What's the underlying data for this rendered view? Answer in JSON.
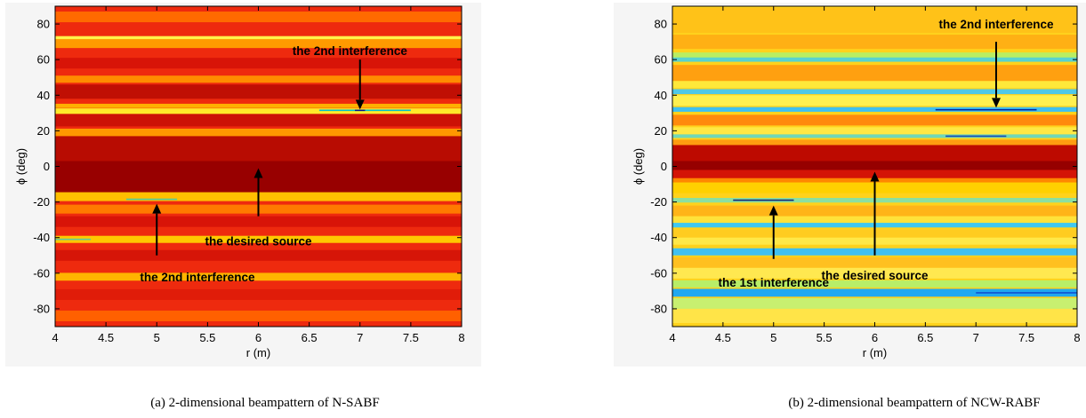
{
  "chart_data": [
    {
      "type": "heatmap",
      "title": "",
      "caption": "(a) 2-dimensional beampattern of N-SABF",
      "xlabel": "r (m)",
      "ylabel": "ϕ (deg)",
      "xlim": [
        4,
        8
      ],
      "ylim": [
        -90,
        90
      ],
      "xticks": [
        "4",
        "4.5",
        "5",
        "5.5",
        "6",
        "6.5",
        "7",
        "7.5",
        "8"
      ],
      "yticks": [
        "80",
        "60",
        "40",
        "20",
        "0",
        "-20",
        "-40",
        "-60",
        "-80"
      ],
      "colormap": "jet",
      "background_color": "#ee2a0e",
      "bands": [
        {
          "phi": 84,
          "half_width": 3,
          "color": "#ff6a00"
        },
        {
          "phi": 72,
          "half_width": 1.2,
          "color": "#fff34a"
        },
        {
          "phi": 69,
          "half_width": 2.5,
          "color": "#ff9a00"
        },
        {
          "phi": 58,
          "half_width": 3,
          "color": "#d81408"
        },
        {
          "phi": 49,
          "half_width": 2,
          "color": "#ff8c00"
        },
        {
          "phi": 42,
          "half_width": 4,
          "color": "#c00f04"
        },
        {
          "phi": 34,
          "half_width": 1.2,
          "color": "#ffb000"
        },
        {
          "phi": 31,
          "half_width": 1.6,
          "color": "#ffea2a"
        },
        {
          "phi": 26,
          "half_width": 3.5,
          "color": "#cc1206"
        },
        {
          "phi": 19,
          "half_width": 2.2,
          "color": "#ff9800"
        },
        {
          "phi": 9,
          "half_width": 8,
          "color": "#b80c02"
        },
        {
          "phi": 1,
          "half_width": 1.3,
          "color": "#ff9d00"
        },
        {
          "phi": -6,
          "half_width": 9,
          "color": "#980000"
        },
        {
          "phi": -17,
          "half_width": 2.5,
          "color": "#ffbf00"
        },
        {
          "phi": -24,
          "half_width": 2.5,
          "color": "#ff7a00"
        },
        {
          "phi": -31,
          "half_width": 3,
          "color": "#d81408"
        },
        {
          "phi": -41,
          "half_width": 2,
          "color": "#ffc800"
        },
        {
          "phi": -50,
          "half_width": 3,
          "color": "#d61508"
        },
        {
          "phi": -62,
          "half_width": 2.2,
          "color": "#ffb400"
        },
        {
          "phi": -72,
          "half_width": 3,
          "color": "#e01c09"
        },
        {
          "phi": -84,
          "half_width": 3,
          "color": "#ff6000"
        }
      ],
      "thin_lines": [
        {
          "phi": 31.5,
          "x0": 6.6,
          "x1": 7.5,
          "color": "#00c0d0"
        },
        {
          "phi": 31.5,
          "x0": 6.95,
          "x1": 7.05,
          "color": "#001890"
        },
        {
          "phi": -18.5,
          "x0": 4.7,
          "x1": 5.2,
          "color": "#50c8a0"
        },
        {
          "phi": -41,
          "x0": 4.0,
          "x1": 4.35,
          "color": "#60c8a0"
        }
      ],
      "annotations": [
        {
          "text": "the 2nd interference",
          "text_x": 6.9,
          "text_y": 65,
          "arrow_from": [
            7.0,
            60
          ],
          "arrow_to": [
            7.0,
            32
          ]
        },
        {
          "text": "the desired source",
          "text_x": 6.0,
          "text_y": -42,
          "arrow_from": [
            6.0,
            -28
          ],
          "arrow_to": [
            6.0,
            -1
          ]
        },
        {
          "text": "the 2nd interference",
          "text_x": 5.4,
          "text_y": -62,
          "arrow_from": [
            5.0,
            -50
          ],
          "arrow_to": [
            5.0,
            -21
          ]
        }
      ]
    },
    {
      "type": "heatmap",
      "title": "",
      "caption": "(b) 2-dimensional beampattern of NCW-RABF",
      "xlabel": "r (m)",
      "ylabel": "ϕ (deg)",
      "xlim": [
        4,
        8
      ],
      "ylim": [
        -90,
        90
      ],
      "xticks": [
        "4",
        "4.5",
        "5",
        "5.5",
        "6",
        "6.5",
        "7",
        "7.5",
        "8"
      ],
      "yticks": [
        "80",
        "60",
        "40",
        "20",
        "0",
        "-20",
        "-40",
        "-60",
        "-80"
      ],
      "colormap": "jet",
      "background_color": "#ffd21c",
      "bands": [
        {
          "phi": 82,
          "half_width": 7,
          "color": "#ffc218"
        },
        {
          "phi": 70,
          "half_width": 4,
          "color": "#ffb014"
        },
        {
          "phi": 62,
          "half_width": 2,
          "color": "#b8ee62"
        },
        {
          "phi": 60,
          "half_width": 1.2,
          "color": "#58d2d0"
        },
        {
          "phi": 52,
          "half_width": 5,
          "color": "#ffa010"
        },
        {
          "phi": 46,
          "half_width": 2,
          "color": "#ffe83a"
        },
        {
          "phi": 42,
          "half_width": 1.4,
          "color": "#50c8e8"
        },
        {
          "phi": 37,
          "half_width": 3,
          "color": "#fff050"
        },
        {
          "phi": 32,
          "half_width": 1.3,
          "color": "#40c0f0"
        },
        {
          "phi": 26,
          "half_width": 3,
          "color": "#ff8a0c"
        },
        {
          "phi": 20,
          "half_width": 2,
          "color": "#ffe844"
        },
        {
          "phi": 17,
          "half_width": 1,
          "color": "#70d8b8"
        },
        {
          "phi": 13,
          "half_width": 2,
          "color": "#ff9c10"
        },
        {
          "phi": 5,
          "half_width": 7,
          "color": "#bd0a00"
        },
        {
          "phi": 0,
          "half_width": 3,
          "color": "#960000"
        },
        {
          "phi": -5,
          "half_width": 3,
          "color": "#d41406"
        },
        {
          "phi": -8,
          "half_width": 1.4,
          "color": "#ff8800"
        },
        {
          "phi": -12,
          "half_width": 3,
          "color": "#ffd000"
        },
        {
          "phi": -19,
          "half_width": 1.3,
          "color": "#8cdfa0"
        },
        {
          "phi": -25,
          "half_width": 3,
          "color": "#ffb418"
        },
        {
          "phi": -30,
          "half_width": 2,
          "color": "#ffe23a"
        },
        {
          "phi": -33,
          "half_width": 1.3,
          "color": "#40c8f0"
        },
        {
          "phi": -38,
          "half_width": 2.5,
          "color": "#ffcc20"
        },
        {
          "phi": -42,
          "half_width": 2,
          "color": "#ffe848"
        },
        {
          "phi": -48,
          "half_width": 2,
          "color": "#40c0f0"
        },
        {
          "phi": -54,
          "half_width": 3,
          "color": "#ffc020"
        },
        {
          "phi": -60,
          "half_width": 3,
          "color": "#ffe850"
        },
        {
          "phi": -66,
          "half_width": 2,
          "color": "#b8ee68"
        },
        {
          "phi": -71,
          "half_width": 2.2,
          "color": "#20a8f0"
        },
        {
          "phi": -77,
          "half_width": 3,
          "color": "#c8f070"
        },
        {
          "phi": -84,
          "half_width": 4,
          "color": "#ffe448"
        }
      ],
      "thin_lines": [
        {
          "phi": 31.8,
          "x0": 6.6,
          "x1": 7.6,
          "color": "#0028a0"
        },
        {
          "phi": 17,
          "x0": 6.7,
          "x1": 7.3,
          "color": "#1848b0"
        },
        {
          "phi": -19,
          "x0": 4.6,
          "x1": 5.2,
          "color": "#102878"
        },
        {
          "phi": -71,
          "x0": 7.0,
          "x1": 8.0,
          "color": "#1050d0"
        }
      ],
      "annotations": [
        {
          "text": "the 2nd interference",
          "text_x": 7.2,
          "text_y": 80,
          "arrow_from": [
            7.2,
            70
          ],
          "arrow_to": [
            7.2,
            33
          ]
        },
        {
          "text": "the 1st interference",
          "text_x": 5.0,
          "text_y": -65,
          "arrow_from": [
            5.0,
            -52
          ],
          "arrow_to": [
            5.0,
            -22
          ]
        },
        {
          "text": "the desired source",
          "text_x": 6.0,
          "text_y": -61,
          "arrow_from": [
            6.0,
            -50
          ],
          "arrow_to": [
            6.0,
            -3
          ]
        }
      ]
    }
  ]
}
